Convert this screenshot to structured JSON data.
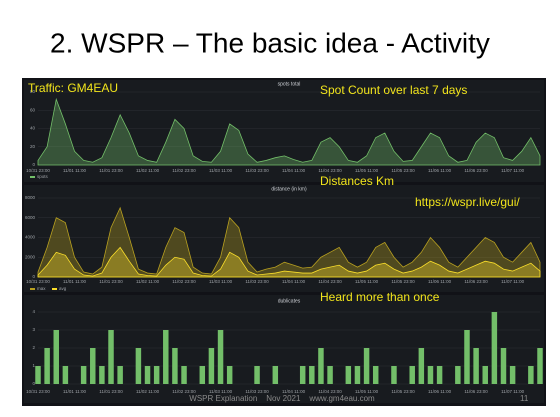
{
  "slide": {
    "title": "2. WSPR – The basic idea - Activity",
    "notes": [
      "Traffic: GM4EAU",
      "Spot Count  over last 7 days",
      "Distances  Km",
      "https://wspr.live/gui/",
      "Heard more than once"
    ],
    "footer": "WSPR Explanation    Nov 2021    www.gm4eau.com",
    "page": "11"
  },
  "chart_data": [
    {
      "type": "area",
      "title": "spots total",
      "categories": [
        "10/31 23:00",
        null,
        null,
        null,
        "11/01 11:00",
        null,
        null,
        null,
        "11/01 23:00",
        null,
        null,
        null,
        "11/02 11:00",
        null,
        null,
        null,
        "11/02 23:00",
        null,
        null,
        null,
        "11/03 11:00",
        null,
        null,
        null,
        "11/03 23:00",
        null,
        null,
        null,
        "11/04 11:00",
        null,
        null,
        null,
        "11/04 23:00",
        null,
        null,
        null,
        "11/05 11:00",
        null,
        null,
        null,
        "11/05 23:00",
        null,
        null,
        null,
        "11/06 11:00",
        null,
        null,
        null,
        "11/06 23:00",
        null,
        null,
        null,
        "11/07 11:00",
        null,
        null,
        null
      ],
      "series": [
        {
          "name": "spots",
          "color": "#73bf69",
          "values": [
            5,
            20,
            72,
            45,
            15,
            5,
            3,
            8,
            30,
            55,
            35,
            10,
            5,
            3,
            25,
            50,
            40,
            10,
            4,
            3,
            15,
            45,
            38,
            12,
            3,
            5,
            8,
            10,
            6,
            3,
            5,
            25,
            30,
            20,
            5,
            3,
            10,
            30,
            35,
            15,
            4,
            5,
            20,
            35,
            30,
            10,
            3,
            5,
            25,
            35,
            30,
            8,
            5,
            15,
            30,
            10
          ]
        }
      ],
      "ylim": [
        0,
        80
      ],
      "yticks": [
        0,
        20,
        40,
        60,
        80
      ]
    },
    {
      "type": "area",
      "title": "distance (in km)",
      "categories": [
        "10/31 23:00",
        null,
        null,
        null,
        "11/01 11:00",
        null,
        null,
        null,
        "11/01 23:00",
        null,
        null,
        null,
        "11/02 11:00",
        null,
        null,
        null,
        "11/02 23:00",
        null,
        null,
        null,
        "11/03 11:00",
        null,
        null,
        null,
        "11/03 23:00",
        null,
        null,
        null,
        "11/04 11:00",
        null,
        null,
        null,
        "11/04 23:00",
        null,
        null,
        null,
        "11/05 11:00",
        null,
        null,
        null,
        "11/05 23:00",
        null,
        null,
        null,
        "11/06 11:00",
        null,
        null,
        null,
        "11/06 23:00",
        null,
        null,
        null,
        "11/07 11:00",
        null,
        null,
        null
      ],
      "series": [
        {
          "name": "max",
          "color": "#b8a020",
          "values": [
            500,
            3000,
            6000,
            5500,
            2000,
            500,
            300,
            1000,
            5000,
            7000,
            4000,
            800,
            400,
            300,
            3000,
            5000,
            4500,
            1000,
            400,
            300,
            2000,
            6000,
            5000,
            1500,
            500,
            800,
            1000,
            1500,
            1200,
            900,
            1000,
            2000,
            2500,
            3000,
            1500,
            1000,
            1500,
            3000,
            3500,
            2000,
            1000,
            1500,
            2500,
            4000,
            3000,
            1500,
            1000,
            2000,
            3000,
            4000,
            3500,
            2000,
            1500,
            2500,
            3500,
            1500
          ]
        },
        {
          "name": "avg",
          "color": "#fade2a",
          "values": [
            200,
            1200,
            2500,
            2200,
            800,
            200,
            100,
            400,
            2000,
            3000,
            1600,
            300,
            150,
            100,
            1200,
            2000,
            1800,
            400,
            150,
            100,
            800,
            2500,
            2000,
            600,
            200,
            300,
            400,
            600,
            500,
            400,
            400,
            800,
            1000,
            1200,
            600,
            400,
            600,
            1200,
            1400,
            800,
            400,
            600,
            1000,
            1600,
            1200,
            600,
            400,
            800,
            1200,
            1600,
            1400,
            800,
            600,
            1000,
            1400,
            600
          ]
        }
      ],
      "ylim": [
        0,
        8000
      ],
      "yticks": [
        0,
        2000,
        4000,
        6000,
        8000
      ]
    },
    {
      "type": "bar",
      "title": "dublicates",
      "categories": [
        "10/31 23:00",
        null,
        null,
        null,
        "11/01 11:00",
        null,
        null,
        null,
        "11/01 23:00",
        null,
        null,
        null,
        "11/02 11:00",
        null,
        null,
        null,
        "11/02 23:00",
        null,
        null,
        null,
        "11/03 11:00",
        null,
        null,
        null,
        "11/03 23:00",
        null,
        null,
        null,
        "11/04 11:00",
        null,
        null,
        null,
        "11/04 23:00",
        null,
        null,
        null,
        "11/05 11:00",
        null,
        null,
        null,
        "11/05 23:00",
        null,
        null,
        null,
        "11/06 11:00",
        null,
        null,
        null,
        "11/06 23:00",
        null,
        null,
        null,
        "11/07 11:00",
        null,
        null,
        null
      ],
      "series": [
        {
          "name": "dublicates",
          "color": "#73bf69",
          "values": [
            1,
            2,
            3,
            1,
            0,
            1,
            2,
            1,
            3,
            1,
            0,
            2,
            1,
            1,
            3,
            2,
            1,
            0,
            1,
            2,
            3,
            1,
            0,
            0,
            1,
            0,
            1,
            0,
            0,
            1,
            1,
            2,
            1,
            0,
            1,
            1,
            2,
            1,
            0,
            1,
            0,
            1,
            2,
            1,
            1,
            0,
            1,
            3,
            2,
            1,
            4,
            2,
            1,
            0,
            1,
            2
          ]
        }
      ],
      "ylim": [
        0,
        4
      ],
      "yticks": [
        0,
        1,
        2,
        3,
        4
      ],
      "legend": false
    }
  ]
}
